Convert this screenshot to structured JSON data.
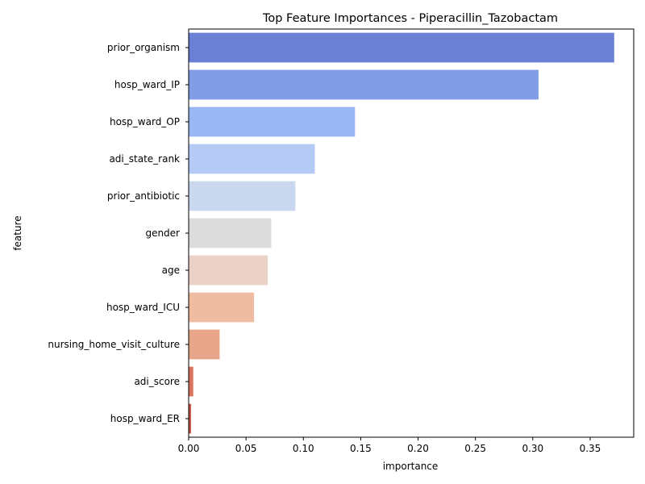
{
  "chart_data": {
    "type": "bar",
    "orientation": "horizontal",
    "title": "Top Feature Importances - Piperacillin_Tazobactam",
    "xlabel": "importance",
    "ylabel": "feature",
    "xlim": [
      0,
      0.388
    ],
    "xticks": [
      "0.00",
      "0.05",
      "0.10",
      "0.15",
      "0.20",
      "0.25",
      "0.30",
      "0.35"
    ],
    "categories": [
      "prior_organism",
      "hosp_ward_IP",
      "hosp_ward_OP",
      "adi_state_rank",
      "prior_antibiotic",
      "gender",
      "age",
      "hosp_ward_ICU",
      "nursing_home_visit_culture",
      "adi_score",
      "hosp_ward_ER"
    ],
    "values": [
      0.371,
      0.305,
      0.145,
      0.11,
      0.093,
      0.072,
      0.069,
      0.057,
      0.027,
      0.004,
      0.002
    ],
    "colors": [
      "#6a80d4",
      "#829ce8",
      "#9ab6f5",
      "#b5cbf5",
      "#cad8ef",
      "#dcdcdc",
      "#ebd2c6",
      "#efbba1",
      "#e8a58a",
      "#d9735b",
      "#c04b40"
    ],
    "grid": false,
    "legend": "none"
  }
}
